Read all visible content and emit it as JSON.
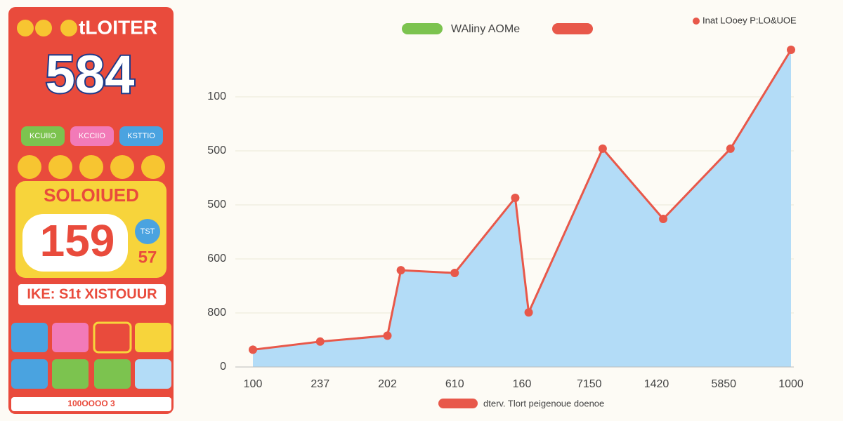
{
  "panel": {
    "logo": "tLOITER",
    "big_number": "584",
    "chips": [
      "KCUIIO",
      "KCCIIO",
      "KSTTIO"
    ],
    "banner": "SOLOIUED",
    "price": "159",
    "price_small": "57",
    "badge": "TST",
    "strip": "IKE: S1t XISTOUUR",
    "footer": "100OOOO 3"
  },
  "chart_data": {
    "type": "line",
    "area": true,
    "area_color": "#b3dcf7",
    "grid": true,
    "legend_top": {
      "text": "WAliny AOMe",
      "color": "#7cc34f"
    },
    "legend_bottom": {
      "text": "dterv. Tlort peigenoue doenoe"
    },
    "x": [
      0,
      1,
      2,
      2.2,
      3,
      3.9,
      4.1,
      5.2,
      6.1,
      7.1,
      8
    ],
    "series": [
      {
        "name": "Inat LOoey P:LO&UOE",
        "color": "#e8584a",
        "values": [
          32,
          47,
          58,
          179,
          174,
          313,
          101,
          404,
          274,
          404,
          587
        ]
      }
    ],
    "xlim": [
      0,
      8
    ],
    "xticks": [
      {
        "value": 0,
        "label": "100"
      },
      {
        "value": 1,
        "label": "237"
      },
      {
        "value": 2,
        "label": "202"
      },
      {
        "value": 3,
        "label": "610"
      },
      {
        "value": 4,
        "label": "160"
      },
      {
        "value": 5,
        "label": "7150"
      },
      {
        "value": 6,
        "label": "1420"
      },
      {
        "value": 7,
        "label": "5850"
      },
      {
        "value": 8,
        "label": "1000"
      }
    ],
    "ylim": [
      0,
      600
    ],
    "yticks": [
      0,
      {
        "value": 100,
        "label": "800"
      },
      {
        "value": 200,
        "label": "600"
      },
      {
        "value": 300,
        "label": "500"
      },
      {
        "value": 400,
        "label": "500"
      },
      {
        "value": 500,
        "label": "100"
      }
    ]
  }
}
